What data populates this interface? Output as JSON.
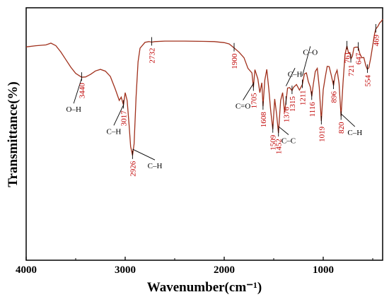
{
  "chart_data": {
    "type": "line",
    "xlabel": "Wavenumber(cm⁻¹)",
    "ylabel": "Transmittance(%)",
    "xlim": [
      4000,
      400
    ],
    "x_reversed": true,
    "x_ticks": [
      "4000",
      "3000",
      "2000",
      "1000"
    ],
    "x_tick_values": [
      4000,
      3000,
      2000,
      1000
    ],
    "ylim": [
      0,
      100
    ],
    "line_color": "#a0301c",
    "label_color": "#c00000",
    "series": [
      {
        "x": [
          4000,
          3900,
          3800,
          3750,
          3700,
          3650,
          3600,
          3550,
          3500,
          3440,
          3400,
          3350,
          3300,
          3250,
          3200,
          3150,
          3100,
          3060,
          3040,
          3017,
          3000,
          2980,
          2960,
          2945,
          2926,
          2910,
          2890,
          2870,
          2850,
          2800,
          2760,
          2732,
          2700,
          2600,
          2400,
          2200,
          2100,
          2000,
          1950,
          1900,
          1850,
          1800,
          1760,
          1720,
          1705,
          1690,
          1660,
          1640,
          1620,
          1608,
          1590,
          1570,
          1550,
          1530,
          1509,
          1490,
          1470,
          1452,
          1430,
          1410,
          1390,
          1376,
          1360,
          1340,
          1315,
          1300,
          1270,
          1240,
          1211,
          1190,
          1170,
          1150,
          1130,
          1116,
          1100,
          1080,
          1060,
          1040,
          1019,
          1000,
          980,
          960,
          940,
          920,
          896,
          880,
          860,
          840,
          820,
          800,
          780,
          761,
          745,
          730,
          721,
          705,
          690,
          670,
          647,
          630,
          610,
          590,
          570,
          554,
          540,
          520,
          500,
          480,
          469,
          450,
          430,
          410,
          400
        ],
        "y": [
          84.5,
          85.0,
          85.3,
          86.0,
          85.0,
          82.5,
          79.5,
          76.5,
          74.0,
          72.5,
          72.6,
          73.6,
          75.0,
          75.6,
          74.9,
          72.8,
          67.8,
          63.3,
          64.6,
          61.5,
          66.4,
          63.2,
          53.3,
          45.0,
          41.5,
          46.1,
          64.7,
          78.6,
          84.0,
          86.3,
          86.6,
          86.4,
          86.6,
          86.8,
          86.8,
          86.7,
          86.6,
          86.2,
          85.7,
          84.1,
          82.4,
          80.2,
          76.0,
          74.2,
          68.5,
          75.5,
          71.8,
          66.4,
          70.3,
          61.0,
          71.3,
          75.6,
          68.0,
          59.1,
          51.9,
          63.9,
          57.6,
          50.4,
          63.3,
          66.4,
          58.6,
          63.0,
          68.2,
          68.4,
          67.2,
          68.5,
          69.6,
          67.4,
          69.6,
          73.8,
          74.2,
          70.7,
          68.6,
          64.9,
          69.7,
          74.8,
          76.0,
          68.5,
          55.2,
          67.5,
          72.4,
          76.8,
          76.7,
          73.5,
          69.2,
          73.3,
          75.3,
          70.0,
          57.0,
          70.3,
          81.5,
          84.9,
          82.2,
          82.2,
          79.7,
          80.9,
          84.2,
          84.4,
          84.4,
          81.8,
          80.2,
          80.3,
          77.1,
          75.6,
          76.2,
          80.2,
          85.1,
          90.0,
          91.6,
          92.5,
          94.0,
          94.8,
          95.5
        ]
      }
    ],
    "annotations": [
      {
        "text": "3440",
        "x": 3440,
        "y": 72.5,
        "rotated": true
      },
      {
        "text": "3017",
        "x": 3017,
        "y": 61.5,
        "rotated": true
      },
      {
        "text": "2926",
        "x": 2926,
        "y": 41.5,
        "rotated": true
      },
      {
        "text": "2732",
        "x": 2732,
        "y": 86.4,
        "rotated": true
      },
      {
        "text": "1900",
        "x": 1900,
        "y": 84.1,
        "rotated": true
      },
      {
        "text": "1705",
        "x": 1705,
        "y": 68.5,
        "rotated": true
      },
      {
        "text": "1608",
        "x": 1608,
        "y": 61.0,
        "rotated": true
      },
      {
        "text": "1509",
        "x": 1509,
        "y": 51.9,
        "rotated": true
      },
      {
        "text": "1452",
        "x": 1452,
        "y": 50.4,
        "rotated": true
      },
      {
        "text": "1376",
        "x": 1376,
        "y": 63.0,
        "rotated": true
      },
      {
        "text": "1315",
        "x": 1315,
        "y": 67.2,
        "rotated": true
      },
      {
        "text": "1211",
        "x": 1211,
        "y": 69.6,
        "rotated": true
      },
      {
        "text": "1116",
        "x": 1116,
        "y": 64.9,
        "rotated": true
      },
      {
        "text": "1019",
        "x": 1019,
        "y": 55.2,
        "rotated": true
      },
      {
        "text": "896",
        "x": 896,
        "y": 69.2,
        "rotated": true
      },
      {
        "text": "820",
        "x": 820,
        "y": 57.0,
        "rotated": true
      },
      {
        "text": "761",
        "x": 761,
        "y": 84.9,
        "rotated": true
      },
      {
        "text": "721",
        "x": 721,
        "y": 79.7,
        "rotated": true
      },
      {
        "text": "647",
        "x": 647,
        "y": 84.4,
        "rotated": true
      },
      {
        "text": "554",
        "x": 554,
        "y": 75.6,
        "rotated": true
      },
      {
        "text": "469",
        "x": 469,
        "y": 91.6,
        "rotated": true
      }
    ],
    "group_labels": [
      {
        "text": "O–H",
        "x": 3520,
        "y": 61.0,
        "points_to": [
          3440,
          72.0
        ]
      },
      {
        "text": "C–H",
        "x": 3115,
        "y": 52.3,
        "points_to": [
          3017,
          61.5
        ]
      },
      {
        "text": "C–H",
        "x": 2700,
        "y": 38.6,
        "points_to": [
          2926,
          44.0
        ]
      },
      {
        "text": "C=O",
        "x": 1810,
        "y": 62.3,
        "points_to": [
          1705,
          70.0
        ]
      },
      {
        "text": "C–H",
        "x": 1285,
        "y": 75.0,
        "points_to": [
          1376,
          69.0
        ]
      },
      {
        "text": "C–O",
        "x": 1130,
        "y": 83.6,
        "points_to": [
          1211,
          73.0
        ]
      },
      {
        "text": "C–C",
        "x": 1350,
        "y": 48.6,
        "points_to": [
          1452,
          53.0
        ]
      },
      {
        "text": "C–H",
        "x": 680,
        "y": 51.8,
        "points_to": [
          820,
          58.0
        ]
      }
    ]
  }
}
